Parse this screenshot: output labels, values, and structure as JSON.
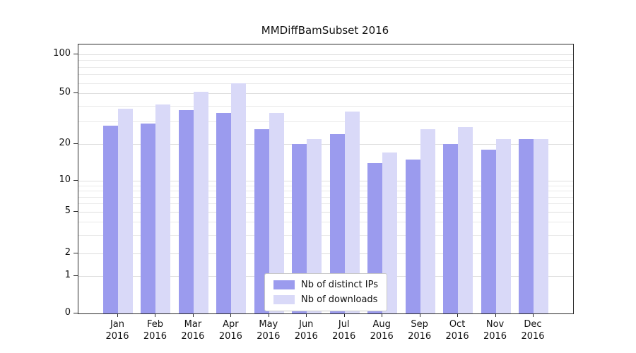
{
  "chart_data": {
    "type": "bar",
    "title": "MMDiffBamSubset 2016",
    "categories": [
      "Jan",
      "Feb",
      "Mar",
      "Apr",
      "May",
      "Jun",
      "Jul",
      "Aug",
      "Sep",
      "Oct",
      "Nov",
      "Dec"
    ],
    "year": "2016",
    "series": [
      {
        "name": "Nb of distinct IPs",
        "color": "#9b9bee",
        "values": [
          28,
          29,
          37,
          35,
          26,
          20,
          24,
          14,
          15,
          20,
          18,
          22
        ]
      },
      {
        "name": "Nb of downloads",
        "color": "#d9d9f8",
        "values": [
          38,
          41,
          51,
          60,
          35,
          22,
          36,
          17,
          26,
          27,
          22,
          22
        ]
      }
    ],
    "yticks": [
      0,
      1,
      2,
      5,
      10,
      20,
      50,
      100
    ],
    "yscale": "symlog",
    "ylim": [
      0,
      100
    ],
    "grid": true,
    "legend_position": "lower center"
  }
}
